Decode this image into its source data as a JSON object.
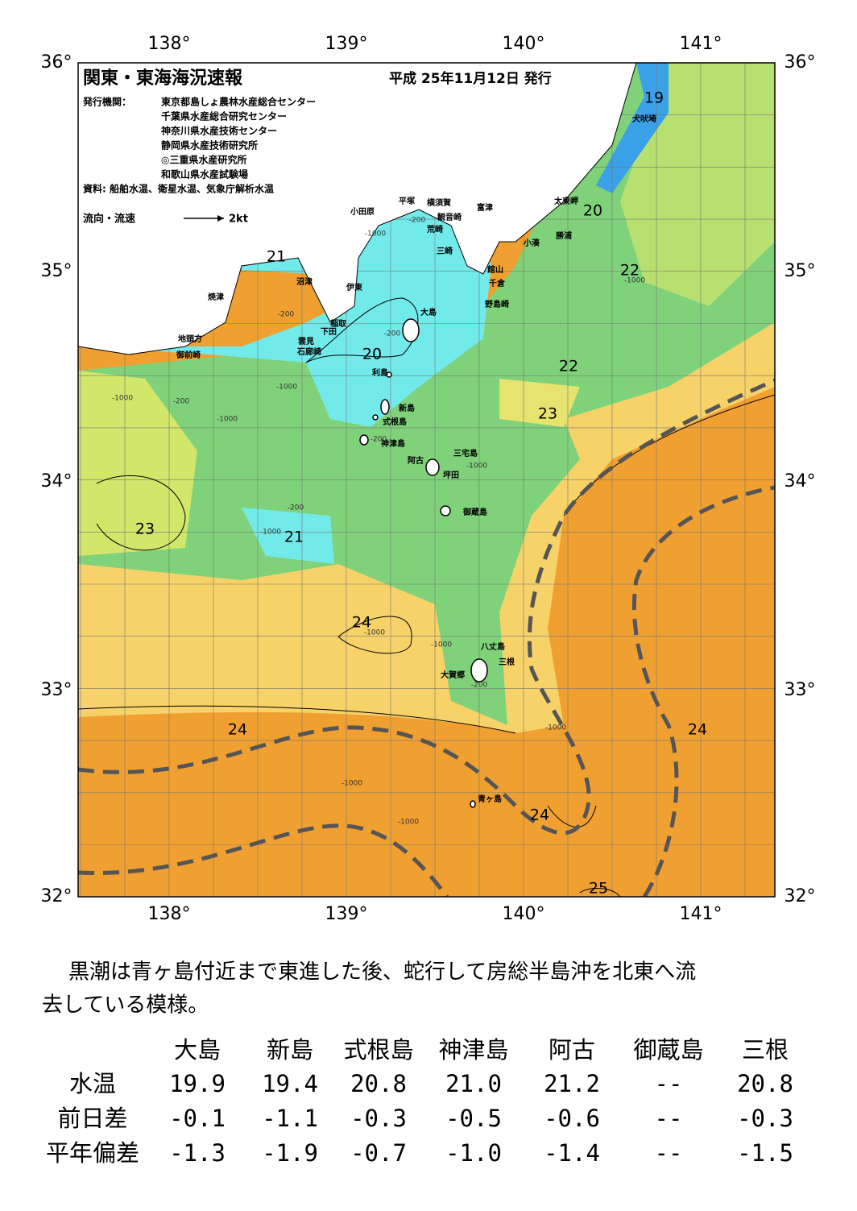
{
  "header": {
    "title": "関東・東海海況速報",
    "date": "平成 25年11月12日 発行",
    "issuer_label": "発行機関：",
    "issuers": [
      "東京都島しょ農林水産総合センター",
      "千葉県水産総合研究センター",
      "神奈川県水産技術センター",
      "静岡県水産技術研究所",
      "◎三重県水産研究所",
      "和歌山県水産試験場"
    ],
    "source": "資料: 船舶水温、衛星水温、気象庁解析水温",
    "legend_label": "流向・流速",
    "legend_speed": "2kt"
  },
  "map": {
    "lon_labels": [
      "138°",
      "139°",
      "140°",
      "141°"
    ],
    "lat_labels": [
      "36°",
      "35°",
      "34°",
      "33°",
      "32°"
    ],
    "contour_labels": [
      19,
      20,
      21,
      22,
      20,
      22,
      23,
      23,
      21,
      24,
      24,
      24,
      24,
      25
    ],
    "depth_labels": [
      -200,
      -1000,
      -200,
      -200,
      -1000,
      -200,
      -1000,
      -1000,
      -200,
      -200,
      -1000,
      -1000,
      -1000,
      -1000,
      -1000,
      -200,
      -1000,
      -1000,
      -1000
    ],
    "places": [
      "犬吠埼",
      "太東岬",
      "勝浦",
      "小湊",
      "富津",
      "横須賀",
      "観音崎",
      "荒崎",
      "三崎",
      "館山",
      "千倉",
      "野島崎",
      "小田原",
      "平塚",
      "沼津",
      "伊東",
      "焼津",
      "稲取",
      "下田",
      "雲見",
      "石廊崎",
      "地頭方",
      "御前崎",
      "大島",
      "利島",
      "新島",
      "式根島",
      "神津島",
      "三宅島",
      "阿古",
      "坪田",
      "御蔵島",
      "八丈島",
      "三根",
      "大賀郷",
      "青ヶ島"
    ]
  },
  "comment": [
    "黒潮は青ヶ島付近まで東進した後、蛇行して房総半島沖を北東へ流",
    "去している模様。"
  ],
  "table": {
    "columns": [
      "大島",
      "新島",
      "式根島",
      "神津島",
      "阿古",
      "御蔵島",
      "三根"
    ],
    "rows": [
      {
        "label": "水温",
        "values": [
          "19.9",
          "19.4",
          "20.8",
          "21.0",
          "21.2",
          "--",
          "20.8"
        ]
      },
      {
        "label": "前日差",
        "values": [
          "-0.1",
          "-1.1",
          "-0.3",
          "-0.5",
          "-0.6",
          "--",
          "-0.3"
        ]
      },
      {
        "label": "平年偏差",
        "values": [
          "-1.3",
          "-1.9",
          "-0.7",
          "-1.0",
          "-1.4",
          "--",
          "-1.5"
        ]
      }
    ]
  }
}
